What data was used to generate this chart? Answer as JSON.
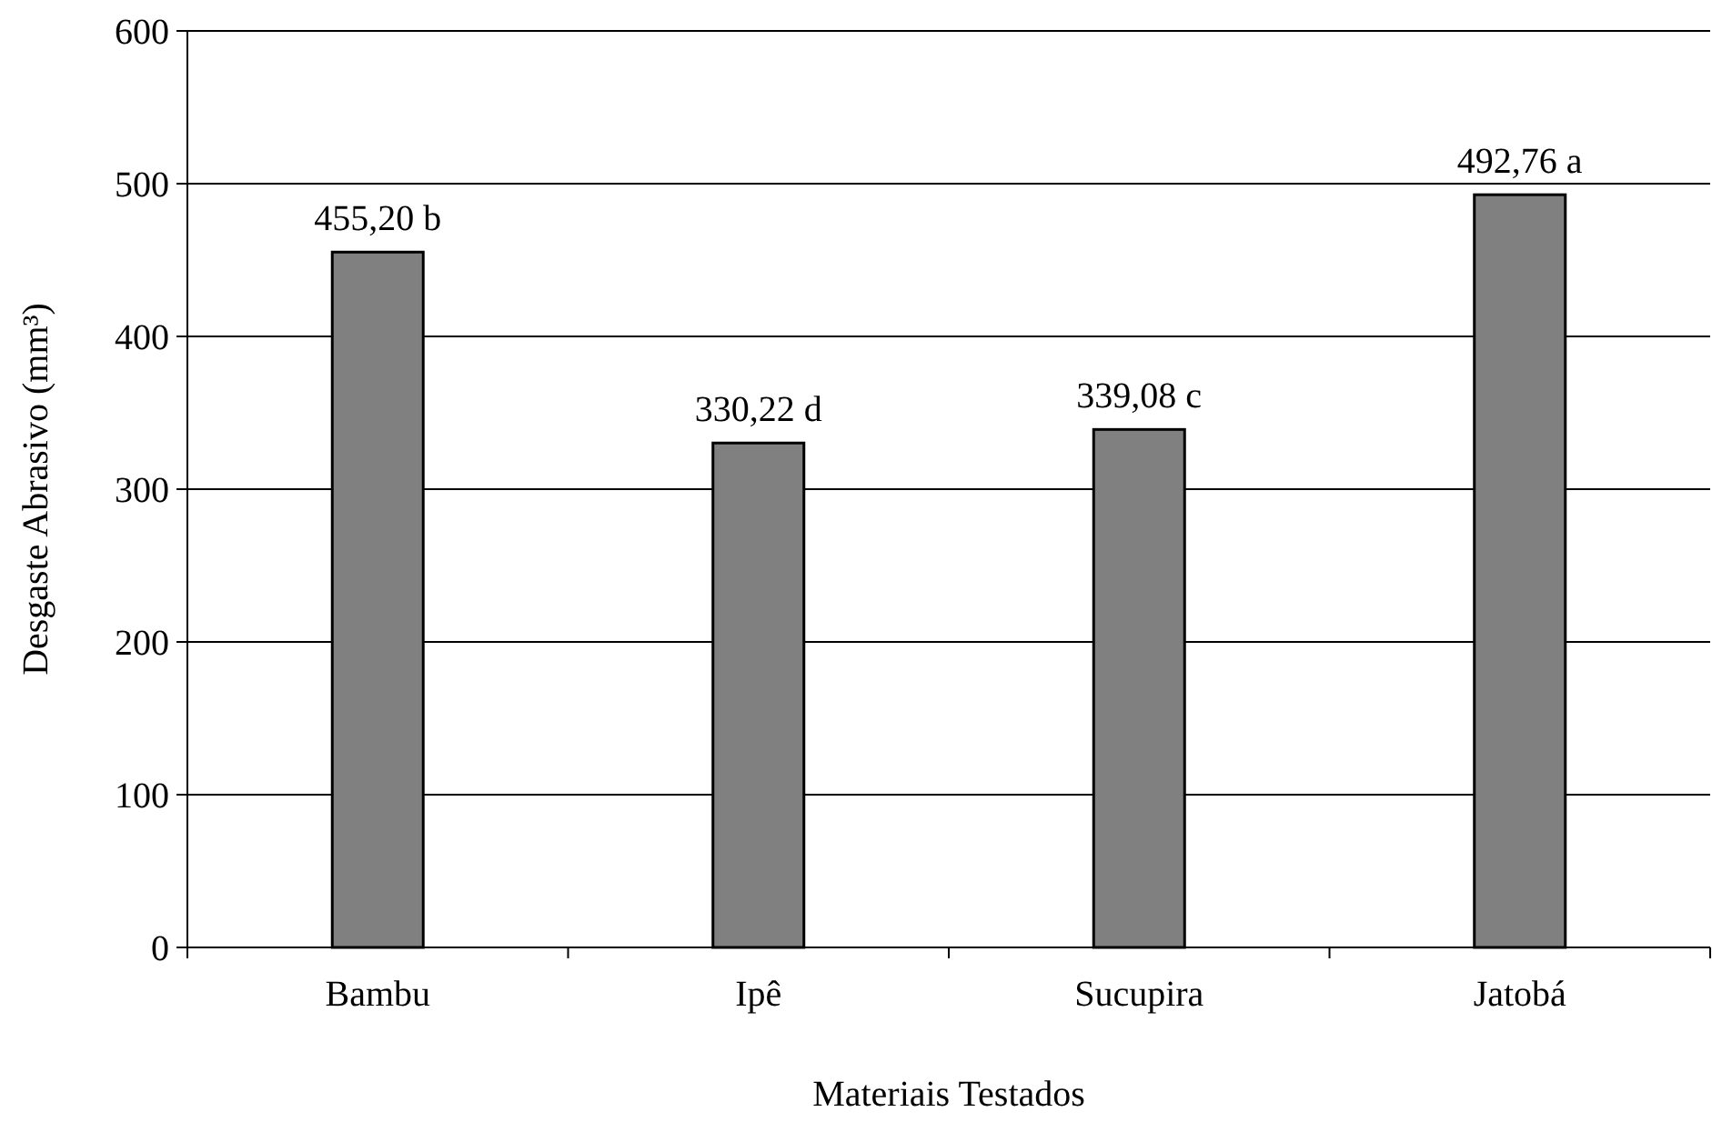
{
  "chart_data": {
    "type": "bar",
    "xlabel": "Materiais Testados",
    "ylabel": "Desgaste Abrasivo (mm³)",
    "categories": [
      "Bambu",
      "Ipê",
      "Sucupira",
      "Jatobá"
    ],
    "values": [
      455.2,
      330.22,
      339.08,
      492.76
    ],
    "value_labels": [
      "455,20 b",
      "330,22 d",
      "339,08 c",
      "492,76 a"
    ],
    "color": "#808080",
    "ylim": [
      0,
      600
    ],
    "yticks": [
      0,
      100,
      200,
      300,
      400,
      500,
      600
    ],
    "grid": "y"
  }
}
